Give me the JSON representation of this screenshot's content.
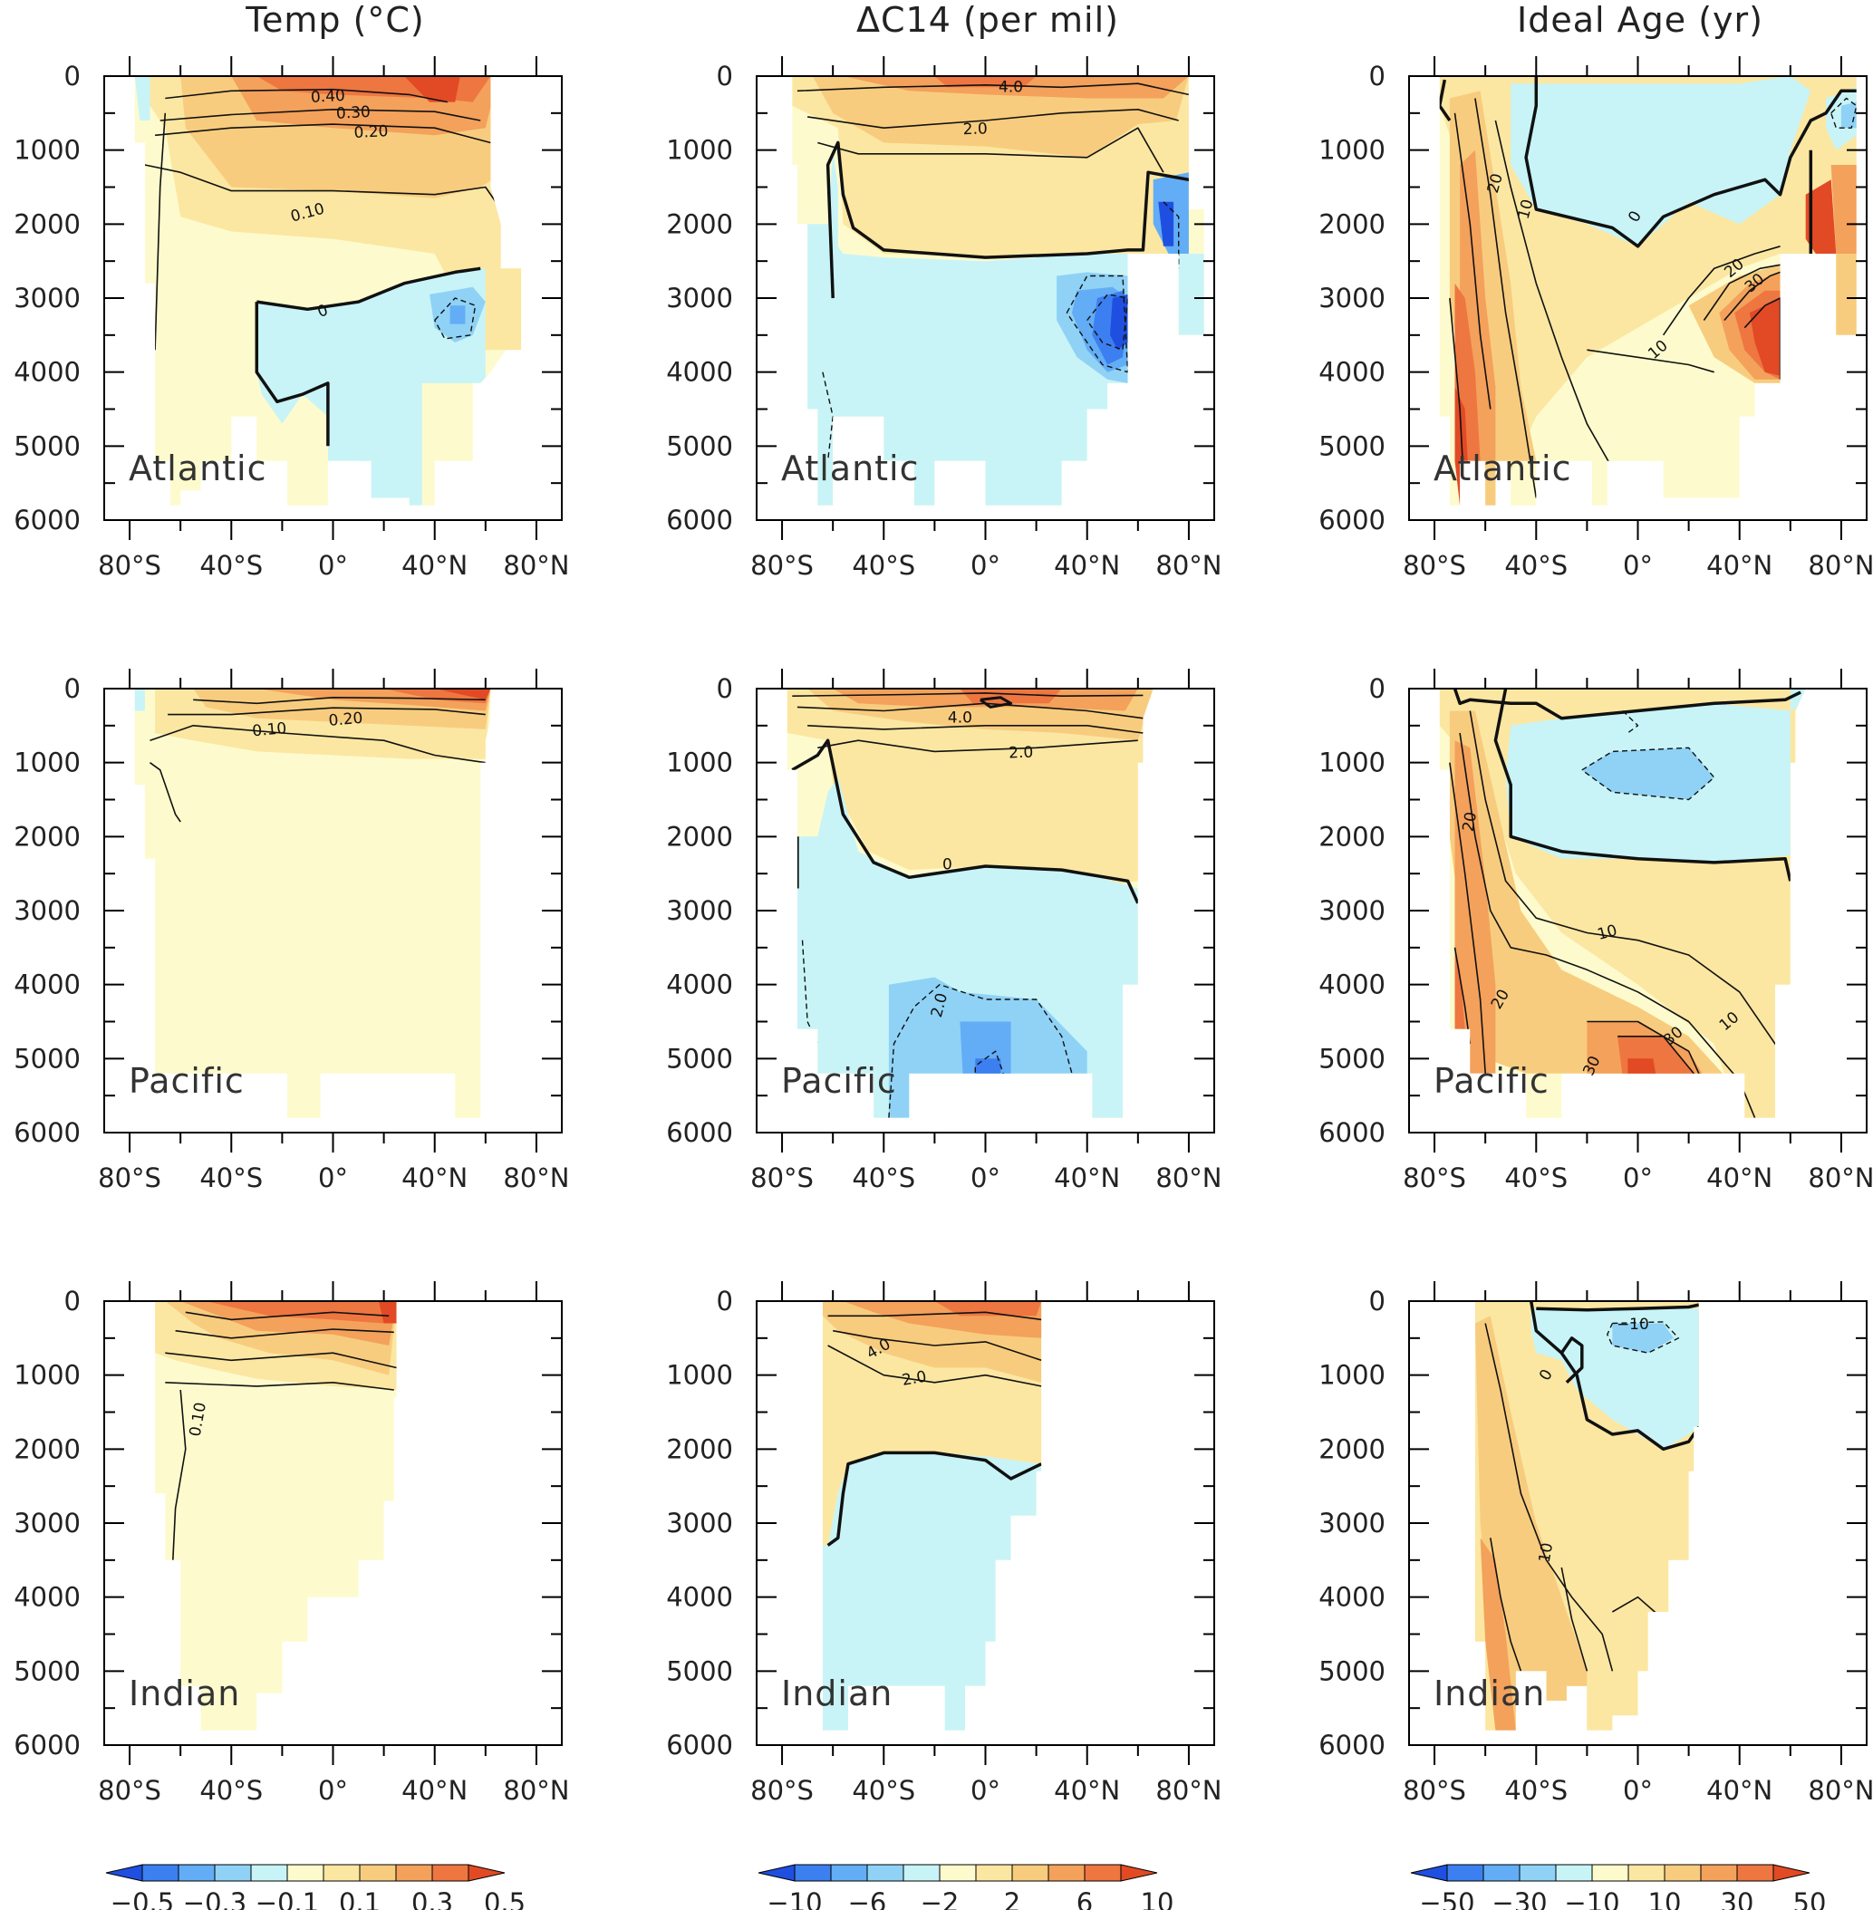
{
  "figure": {
    "column_titles": [
      "Temp (°C)",
      "ΔC14 (per mil)",
      "Ideal Age (yr)"
    ],
    "row_labels": [
      "Atlantic",
      "Pacific",
      "Indian"
    ],
    "depth_ticks": [
      "0",
      "1000",
      "2000",
      "3000",
      "4000",
      "5000",
      "6000"
    ],
    "lat_ticks": [
      "80°S",
      "40°S",
      "0°",
      "40°N",
      "80°N"
    ]
  },
  "colors": {
    "levels": [
      "#1f4fe0",
      "#3c7ff0",
      "#62adf5",
      "#8fd2f6",
      "#c8f4f7",
      "#fdfbcd",
      "#fbe7a2",
      "#f8cc7e",
      "#f3a15b",
      "#ee7640",
      "#e14a24"
    ]
  },
  "chart_data": [
    {
      "type": "heatmap",
      "title": "Temp (°C)",
      "colorbar": {
        "labels": [
          "−0.5",
          "−0.3",
          "−0.1",
          "0.1",
          "0.3",
          "0.5"
        ],
        "values": [
          -0.5,
          -0.3,
          -0.1,
          0.1,
          0.3,
          0.5
        ]
      },
      "panels": [
        {
          "basin": "Atlantic",
          "contour_labels": [
            "0.40",
            "0.30",
            "0.20",
            "0.10",
            "0"
          ]
        },
        {
          "basin": "Pacific",
          "contour_labels": [
            "0.10",
            "0.20"
          ]
        },
        {
          "basin": "Indian",
          "contour_labels": [
            "0.10"
          ]
        }
      ]
    },
    {
      "type": "heatmap",
      "title": "ΔC14 (per mil)",
      "colorbar": {
        "labels": [
          "−10",
          "−6",
          "−2",
          "2",
          "6",
          "10"
        ],
        "values": [
          -10,
          -6,
          -2,
          2,
          6,
          10
        ]
      },
      "panels": [
        {
          "basin": "Atlantic",
          "contour_labels": [
            "4.0",
            "2.0"
          ]
        },
        {
          "basin": "Pacific",
          "contour_labels": [
            "4.0",
            "2.0",
            "0",
            "2.0"
          ]
        },
        {
          "basin": "Indian",
          "contour_labels": [
            "4.0",
            "2.0"
          ]
        }
      ]
    },
    {
      "type": "heatmap",
      "title": "Ideal Age (yr)",
      "colorbar": {
        "labels": [
          "−50",
          "−30",
          "−10",
          "10",
          "30",
          "50"
        ],
        "values": [
          -50,
          -30,
          -10,
          10,
          30,
          50
        ]
      },
      "panels": [
        {
          "basin": "Atlantic",
          "contour_labels": [
            "20",
            "10",
            "0",
            "20",
            "30",
            "10"
          ]
        },
        {
          "basin": "Pacific",
          "contour_labels": [
            "20",
            "10",
            "20",
            "30",
            "30",
            "10"
          ]
        },
        {
          "basin": "Indian",
          "contour_labels": [
            "−10",
            "0",
            "10"
          ]
        }
      ]
    }
  ]
}
